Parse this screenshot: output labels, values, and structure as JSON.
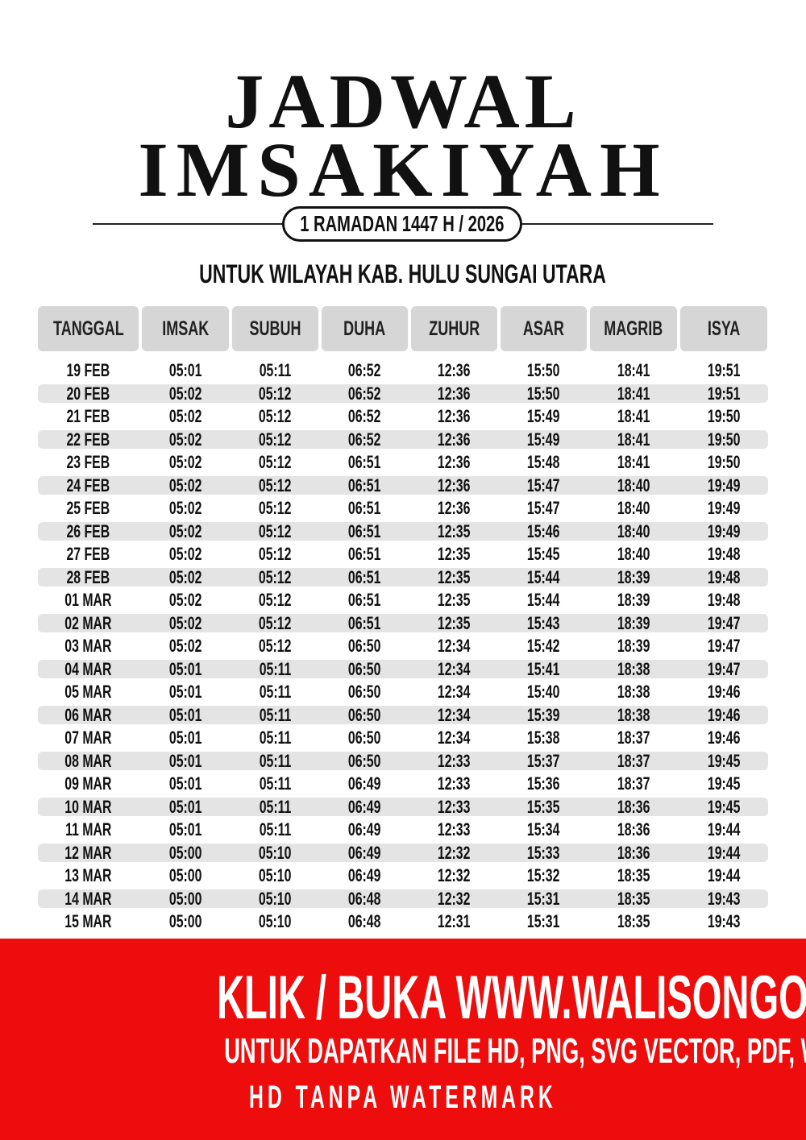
{
  "header": {
    "title_line_1": "JADWAL",
    "title_line_2": "IMSAKIYAH",
    "period": "1 RAMADAN 1447 H / 2026",
    "region": "UNTUK WILAYAH KAB. HULU SUNGAI UTARA"
  },
  "table": {
    "columns": [
      "TANGGAL",
      "IMSAK",
      "SUBUH",
      "DUHA",
      "ZUHUR",
      "ASAR",
      "MAGRIB",
      "ISYA"
    ],
    "rows": [
      [
        "19 FEB",
        "05:01",
        "05:11",
        "06:52",
        "12:36",
        "15:50",
        "18:41",
        "19:51"
      ],
      [
        "20 FEB",
        "05:02",
        "05:12",
        "06:52",
        "12:36",
        "15:50",
        "18:41",
        "19:51"
      ],
      [
        "21 FEB",
        "05:02",
        "05:12",
        "06:52",
        "12:36",
        "15:49",
        "18:41",
        "19:50"
      ],
      [
        "22 FEB",
        "05:02",
        "05:12",
        "06:52",
        "12:36",
        "15:49",
        "18:41",
        "19:50"
      ],
      [
        "23 FEB",
        "05:02",
        "05:12",
        "06:51",
        "12:36",
        "15:48",
        "18:41",
        "19:50"
      ],
      [
        "24 FEB",
        "05:02",
        "05:12",
        "06:51",
        "12:36",
        "15:47",
        "18:40",
        "19:49"
      ],
      [
        "25 FEB",
        "05:02",
        "05:12",
        "06:51",
        "12:36",
        "15:47",
        "18:40",
        "19:49"
      ],
      [
        "26 FEB",
        "05:02",
        "05:12",
        "06:51",
        "12:35",
        "15:46",
        "18:40",
        "19:49"
      ],
      [
        "27 FEB",
        "05:02",
        "05:12",
        "06:51",
        "12:35",
        "15:45",
        "18:40",
        "19:48"
      ],
      [
        "28 FEB",
        "05:02",
        "05:12",
        "06:51",
        "12:35",
        "15:44",
        "18:39",
        "19:48"
      ],
      [
        "01 MAR",
        "05:02",
        "05:12",
        "06:51",
        "12:35",
        "15:44",
        "18:39",
        "19:48"
      ],
      [
        "02 MAR",
        "05:02",
        "05:12",
        "06:51",
        "12:35",
        "15:43",
        "18:39",
        "19:47"
      ],
      [
        "03 MAR",
        "05:02",
        "05:12",
        "06:50",
        "12:34",
        "15:42",
        "18:39",
        "19:47"
      ],
      [
        "04 MAR",
        "05:01",
        "05:11",
        "06:50",
        "12:34",
        "15:41",
        "18:38",
        "19:47"
      ],
      [
        "05 MAR",
        "05:01",
        "05:11",
        "06:50",
        "12:34",
        "15:40",
        "18:38",
        "19:46"
      ],
      [
        "06 MAR",
        "05:01",
        "05:11",
        "06:50",
        "12:34",
        "15:39",
        "18:38",
        "19:46"
      ],
      [
        "07 MAR",
        "05:01",
        "05:11",
        "06:50",
        "12:34",
        "15:38",
        "18:37",
        "19:46"
      ],
      [
        "08 MAR",
        "05:01",
        "05:11",
        "06:50",
        "12:33",
        "15:37",
        "18:37",
        "19:45"
      ],
      [
        "09 MAR",
        "05:01",
        "05:11",
        "06:49",
        "12:33",
        "15:36",
        "18:37",
        "19:45"
      ],
      [
        "10 MAR",
        "05:01",
        "05:11",
        "06:49",
        "12:33",
        "15:35",
        "18:36",
        "19:45"
      ],
      [
        "11 MAR",
        "05:01",
        "05:11",
        "06:49",
        "12:33",
        "15:34",
        "18:36",
        "19:44"
      ],
      [
        "12 MAR",
        "05:00",
        "05:10",
        "06:49",
        "12:32",
        "15:33",
        "18:36",
        "19:44"
      ],
      [
        "13 MAR",
        "05:00",
        "05:10",
        "06:49",
        "12:32",
        "15:32",
        "18:35",
        "19:44"
      ],
      [
        "14 MAR",
        "05:00",
        "05:10",
        "06:48",
        "12:32",
        "15:31",
        "18:35",
        "19:43"
      ],
      [
        "15 MAR",
        "05:00",
        "05:10",
        "06:48",
        "12:31",
        "15:31",
        "18:35",
        "19:43"
      ]
    ]
  },
  "banner": {
    "line_1": "KLIK / BUKA WWW.WALISONGO.CO.ID",
    "line_2": "UNTUK DAPATKAN FILE HD, PNG, SVG VECTOR, PDF, WORD, EXCEL",
    "line_3": "HD TANPA WATERMARK"
  }
}
